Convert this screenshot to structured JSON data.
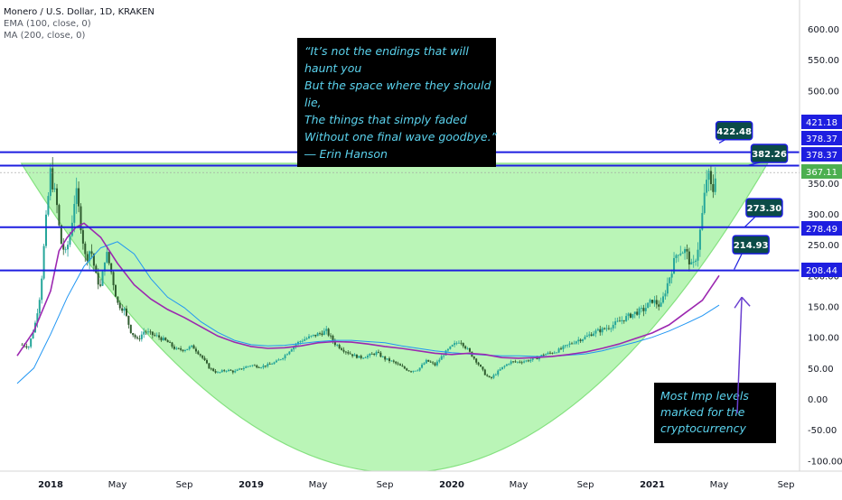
{
  "header": {
    "symbol_line": "Monero / U.S. Dollar, 1D, KRAKEN",
    "ema_line": "EMA (100, close, 0)",
    "ma_line": "MA (200, close, 0)"
  },
  "quote_box": {
    "lines": [
      "“It’s not the endings that will",
      "haunt you",
      "But the space where they should",
      "lie,",
      "The things that simply faded",
      "Without one final wave goodbye.”",
      "― Erin Hanson"
    ],
    "background": "#000000",
    "text_color": "#5bd3ee"
  },
  "note_box": {
    "lines": [
      "Most Imp levels",
      "marked for the",
      "cryptocurrency"
    ],
    "background": "#000000",
    "text_color": "#5bd3ee"
  },
  "colors": {
    "candle_up": "#26a69a",
    "candle_down": "#2e5b2e",
    "ema": "#9c27b0",
    "ma": "#2196f3",
    "level_line": "#1e1ee0",
    "cup_fill": "#b7f5b4",
    "callout_bg": "#0b4b47",
    "callout_border": "#1e1ee0",
    "price_tag_bg": "#1e1ee0",
    "current_price_bg": "#4caf50",
    "arrow": "#6a3fd0"
  },
  "chart_data": {
    "type": "line",
    "title": "Monero / U.S. Dollar, 1D, KRAKEN",
    "xlabel": "",
    "ylabel": "",
    "ylim": [
      -110,
      640
    ],
    "y_ticks": [
      -100,
      -50,
      0,
      50,
      100,
      150,
      200,
      250,
      300,
      350,
      400,
      450,
      500,
      550,
      600
    ],
    "y_tick_labels": [
      "-100.00",
      "-50.00",
      "0.00",
      "50.00",
      "100.00",
      "150.00",
      "200.00",
      "250.00",
      "300.00",
      "350.00",
      "400.00",
      "450.00",
      "500.00",
      "550.00",
      "600.00"
    ],
    "x_ticks": [
      "2018",
      "May",
      "Sep",
      "2019",
      "May",
      "Sep",
      "2020",
      "May",
      "Sep",
      "2021",
      "May",
      "Sep"
    ],
    "x_tick_positions_months": [
      0,
      4,
      8,
      12,
      16,
      20,
      24,
      28,
      32,
      36,
      40,
      44
    ],
    "xlim_months": [
      -2,
      46
    ],
    "grid": false,
    "series": [
      {
        "name": "Price",
        "x_months": [
          -1.7,
          -1.3,
          -0.9,
          -0.6,
          -0.3,
          0.0,
          0.15,
          0.35,
          0.6,
          0.9,
          1.2,
          1.5,
          1.8,
          2.1,
          2.4,
          2.7,
          3.0,
          3.3,
          3.6,
          4.0,
          4.4,
          4.8,
          5.2,
          5.6,
          6.0,
          6.5,
          7.0,
          7.5,
          8.0,
          8.5,
          9.0,
          9.5,
          10.0,
          10.5,
          11.0,
          11.5,
          12.0,
          12.5,
          13.0,
          13.5,
          14.0,
          14.5,
          15.0,
          15.5,
          16.0,
          16.5,
          17.0,
          17.5,
          18.0,
          18.5,
          19.0,
          19.5,
          20.0,
          20.5,
          21.0,
          21.5,
          22.0,
          22.5,
          23.0,
          23.5,
          24.0,
          24.5,
          25.0,
          25.5,
          26.0,
          26.3,
          26.6,
          27.0,
          27.5,
          28.0,
          28.5,
          29.0,
          29.5,
          30.0,
          30.5,
          31.0,
          31.5,
          32.0,
          32.5,
          33.0,
          33.5,
          34.0,
          34.5,
          35.0,
          35.5,
          36.0,
          36.5,
          37.0,
          37.5,
          38.0,
          38.4,
          38.7,
          39.0,
          39.3,
          39.6,
          39.9
        ],
        "values": [
          88,
          85,
          125,
          175,
          280,
          370,
          345,
          320,
          255,
          235,
          270,
          340,
          285,
          225,
          245,
          200,
          180,
          240,
          210,
          155,
          145,
          110,
          95,
          110,
          105,
          100,
          92,
          80,
          80,
          85,
          70,
          50,
          42,
          47,
          44,
          50,
          55,
          52,
          55,
          60,
          70,
          85,
          95,
          100,
          105,
          110,
          90,
          80,
          72,
          67,
          70,
          75,
          65,
          60,
          52,
          45,
          48,
          62,
          55,
          72,
          85,
          95,
          78,
          60,
          40,
          32,
          40,
          50,
          60,
          60,
          62,
          65,
          72,
          75,
          80,
          88,
          95,
          100,
          108,
          112,
          118,
          125,
          133,
          140,
          145,
          160,
          150,
          195,
          240,
          240,
          210,
          240,
          300,
          370,
          330,
          395
        ]
      },
      {
        "name": "EMA 100",
        "x_months": [
          -2,
          -1,
          0,
          0.5,
          1,
          1.5,
          2,
          3,
          4,
          5,
          6,
          7,
          8,
          9,
          10,
          11,
          12,
          13,
          14,
          15,
          16,
          17,
          18,
          19,
          20,
          21,
          22,
          23,
          24,
          25,
          26,
          27,
          28,
          29,
          30,
          31,
          32,
          33,
          34,
          35,
          36,
          37,
          38,
          39,
          40
        ],
        "values": [
          70,
          110,
          175,
          240,
          262,
          278,
          285,
          262,
          220,
          185,
          162,
          145,
          132,
          117,
          102,
          92,
          85,
          82,
          83,
          86,
          91,
          93,
          92,
          89,
          85,
          82,
          78,
          74,
          72,
          74,
          72,
          67,
          66,
          67,
          69,
          72,
          76,
          82,
          89,
          98,
          107,
          120,
          140,
          160,
          200
        ]
      },
      {
        "name": "MA 200",
        "x_months": [
          -2,
          -1,
          0,
          1,
          2,
          3,
          4,
          5,
          6,
          7,
          8,
          9,
          10,
          11,
          12,
          13,
          14,
          15,
          16,
          17,
          18,
          19,
          20,
          21,
          22,
          23,
          24,
          25,
          26,
          27,
          28,
          29,
          30,
          31,
          32,
          33,
          34,
          35,
          36,
          37,
          38,
          39,
          40
        ],
        "values": [
          25,
          50,
          105,
          165,
          215,
          245,
          255,
          235,
          195,
          165,
          148,
          125,
          108,
          95,
          88,
          86,
          87,
          90,
          93,
          95,
          95,
          93,
          91,
          86,
          82,
          78,
          75,
          73,
          71,
          70,
          70,
          69,
          69,
          71,
          73,
          78,
          85,
          92,
          100,
          110,
          122,
          135,
          152
        ]
      }
    ],
    "cup": {
      "rim_price": 382,
      "rim_left_month": -1.75,
      "rim_right_month": 42.9,
      "bottom_price": -120,
      "bottom_month": 21.2
    },
    "levels": [
      {
        "price": 422.48,
        "callout": "422.48",
        "callout_month": 40.4
      },
      {
        "price": 378.37,
        "axis_tag": "378.37",
        "line_month_end": 40.0,
        "callout": "382.26",
        "callout_month": 42.2
      },
      {
        "price": 378.37,
        "axis_tag": "378.37"
      },
      {
        "price": 278.49,
        "axis_tag": "278.49",
        "callout": "273.30",
        "callout_month": 41.7
      },
      {
        "price": 208.44,
        "axis_tag": "208.44",
        "callout": "214.93",
        "callout_month": 41.1
      }
    ],
    "axis_tags": [
      {
        "label": "421.18",
        "price": 421.18,
        "kind": "level"
      },
      {
        "label": "378.37",
        "price": 400,
        "kind": "level"
      },
      {
        "label": "378.37",
        "price": 378.37,
        "kind": "level"
      },
      {
        "label": "367.11",
        "price": 367.11,
        "kind": "current"
      },
      {
        "label": "278.49",
        "price": 278.49,
        "kind": "level"
      },
      {
        "label": "208.44",
        "price": 208.44,
        "kind": "level"
      }
    ],
    "callouts": [
      {
        "label": "422.48",
        "price": 435,
        "month": 40.9,
        "pointer_price": 415,
        "pointer_month": 40.0
      },
      {
        "label": "382.26",
        "price": 398,
        "month": 43.0,
        "pointer_price": 378,
        "pointer_month": 41.6
      },
      {
        "label": "273.30",
        "price": 310,
        "month": 42.7,
        "pointer_price": 278,
        "pointer_month": 41.5
      },
      {
        "label": "214.93",
        "price": 250,
        "month": 41.9,
        "pointer_price": 210,
        "pointer_month": 40.9
      }
    ],
    "arrow": {
      "from_month": 40.0,
      "from_price": -35,
      "to_month": 40.6,
      "to_price": 165
    }
  }
}
